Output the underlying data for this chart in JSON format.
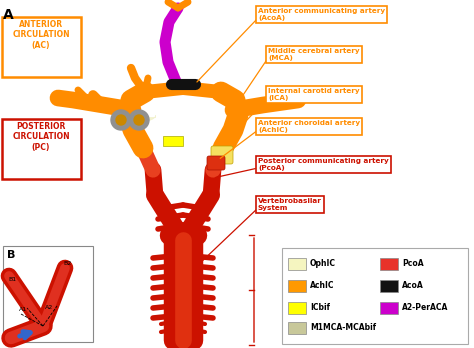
{
  "bg_color": "#ffffff",
  "title_A": "A",
  "title_B": "B",
  "anterior_circ_label": "ANTERIOR\nCIRCULATION\n(AC)",
  "posterior_circ_label": "POSTERIOR\nCIRCULATION\n(PC)",
  "legend_items": [
    {
      "label": "OphIC",
      "color": "#f5f5c0"
    },
    {
      "label": "AchIC",
      "color": "#ff9900"
    },
    {
      "label": "ICbif",
      "color": "#ffff00"
    },
    {
      "label": "M1MCA-MCAbif",
      "color": "#c8c89a"
    },
    {
      "label": "PcoA",
      "color": "#e8322a"
    },
    {
      "label": "AcoA",
      "color": "#111111"
    },
    {
      "label": "A2-PerACA",
      "color": "#cc00cc"
    }
  ],
  "orange": "#ff8c00",
  "red": "#cc1100",
  "magenta": "#cc00cc",
  "black": "#111111",
  "yellow": "#ffff00"
}
